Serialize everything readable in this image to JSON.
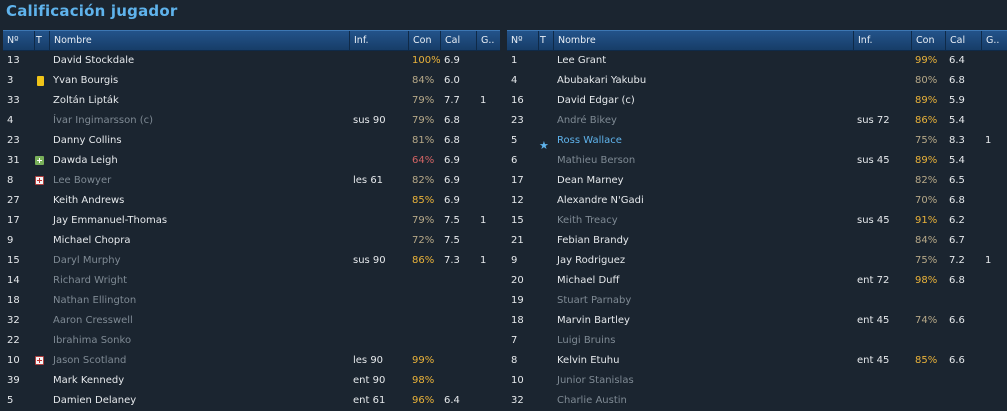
{
  "title": "Calificación jugador",
  "headers": {
    "num": "Nº",
    "t": "T",
    "name": "Nombre",
    "inf": "Inf.",
    "con": "Con",
    "cal": "Cal",
    "g": "G.."
  },
  "left": [
    {
      "num": "13",
      "icon": "",
      "name": "David Stockdale",
      "dim": false,
      "hl": false,
      "inf": "",
      "con": "100%",
      "con_level": "hi",
      "cal": "6.9",
      "g": ""
    },
    {
      "num": "3",
      "icon": "card-yellow-icon",
      "name": "Yvan Bourgis",
      "dim": false,
      "hl": false,
      "inf": "",
      "con": "84%",
      "con_level": "mid",
      "cal": "6.0",
      "g": ""
    },
    {
      "num": "33",
      "icon": "",
      "name": "Zoltán Lipták",
      "dim": false,
      "hl": false,
      "inf": "",
      "con": "79%",
      "con_level": "mid",
      "cal": "7.7",
      "g": "1"
    },
    {
      "num": "4",
      "icon": "",
      "name": "Ívar Ingimarsson (c)",
      "dim": true,
      "hl": false,
      "inf": "sus 90",
      "con": "79%",
      "con_level": "mid",
      "cal": "6.8",
      "g": ""
    },
    {
      "num": "23",
      "icon": "",
      "name": "Danny Collins",
      "dim": false,
      "hl": false,
      "inf": "",
      "con": "81%",
      "con_level": "mid",
      "cal": "6.8",
      "g": ""
    },
    {
      "num": "31",
      "icon": "sub-on-icon",
      "name": "Dawda Leigh",
      "dim": false,
      "hl": false,
      "inf": "",
      "con": "64%",
      "con_level": "low",
      "cal": "6.9",
      "g": ""
    },
    {
      "num": "8",
      "icon": "injury-icon",
      "name": "Lee Bowyer",
      "dim": true,
      "hl": false,
      "inf": "les 61",
      "con": "82%",
      "con_level": "mid",
      "cal": "6.9",
      "g": ""
    },
    {
      "num": "27",
      "icon": "",
      "name": "Keith Andrews",
      "dim": false,
      "hl": false,
      "inf": "",
      "con": "85%",
      "con_level": "hi",
      "cal": "6.9",
      "g": ""
    },
    {
      "num": "17",
      "icon": "",
      "name": "Jay Emmanuel-Thomas",
      "dim": false,
      "hl": false,
      "inf": "",
      "con": "79%",
      "con_level": "mid",
      "cal": "7.5",
      "g": "1"
    },
    {
      "num": "9",
      "icon": "",
      "name": "Michael Chopra",
      "dim": false,
      "hl": false,
      "inf": "",
      "con": "72%",
      "con_level": "mid",
      "cal": "7.5",
      "g": ""
    },
    {
      "num": "15",
      "icon": "",
      "name": "Daryl Murphy",
      "dim": true,
      "hl": false,
      "inf": "sus 90",
      "con": "86%",
      "con_level": "hi",
      "cal": "7.3",
      "g": "1"
    },
    {
      "num": "14",
      "icon": "",
      "name": "Richard Wright",
      "dim": true,
      "hl": false,
      "inf": "",
      "con": "",
      "con_level": "",
      "cal": "",
      "g": ""
    },
    {
      "num": "18",
      "icon": "",
      "name": "Nathan Ellington",
      "dim": true,
      "hl": false,
      "inf": "",
      "con": "",
      "con_level": "",
      "cal": "",
      "g": ""
    },
    {
      "num": "32",
      "icon": "",
      "name": "Aaron Cresswell",
      "dim": true,
      "hl": false,
      "inf": "",
      "con": "",
      "con_level": "",
      "cal": "",
      "g": ""
    },
    {
      "num": "22",
      "icon": "",
      "name": "Ibrahima Sonko",
      "dim": true,
      "hl": false,
      "inf": "",
      "con": "",
      "con_level": "",
      "cal": "",
      "g": ""
    },
    {
      "num": "10",
      "icon": "injury-icon",
      "name": "Jason Scotland",
      "dim": true,
      "hl": false,
      "inf": "les 90",
      "con": "99%",
      "con_level": "hi",
      "cal": "",
      "g": ""
    },
    {
      "num": "39",
      "icon": "",
      "name": "Mark Kennedy",
      "dim": false,
      "hl": false,
      "inf": "ent 90",
      "con": "98%",
      "con_level": "hi",
      "cal": "",
      "g": ""
    },
    {
      "num": "5",
      "icon": "",
      "name": "Damien Delaney",
      "dim": false,
      "hl": false,
      "inf": "ent 61",
      "con": "96%",
      "con_level": "hi",
      "cal": "6.4",
      "g": ""
    }
  ],
  "right": [
    {
      "num": "1",
      "icon": "",
      "name": "Lee Grant",
      "dim": false,
      "hl": false,
      "inf": "",
      "con": "99%",
      "con_level": "hi",
      "cal": "6.4",
      "g": ""
    },
    {
      "num": "4",
      "icon": "",
      "name": "Abubakari Yakubu",
      "dim": false,
      "hl": false,
      "inf": "",
      "con": "80%",
      "con_level": "mid",
      "cal": "6.8",
      "g": ""
    },
    {
      "num": "16",
      "icon": "",
      "name": "David Edgar (c)",
      "dim": false,
      "hl": false,
      "inf": "",
      "con": "89%",
      "con_level": "hi",
      "cal": "5.9",
      "g": ""
    },
    {
      "num": "23",
      "icon": "",
      "name": "André Bikey",
      "dim": true,
      "hl": false,
      "inf": "sus 72",
      "con": "86%",
      "con_level": "hi",
      "cal": "5.4",
      "g": ""
    },
    {
      "num": "5",
      "icon": "star-icon",
      "name": "Ross Wallace",
      "dim": false,
      "hl": true,
      "inf": "",
      "con": "75%",
      "con_level": "mid",
      "cal": "8.3",
      "g": "1"
    },
    {
      "num": "6",
      "icon": "",
      "name": "Mathieu Berson",
      "dim": true,
      "hl": false,
      "inf": "sus 45",
      "con": "89%",
      "con_level": "hi",
      "cal": "5.4",
      "g": ""
    },
    {
      "num": "17",
      "icon": "",
      "name": "Dean Marney",
      "dim": false,
      "hl": false,
      "inf": "",
      "con": "82%",
      "con_level": "mid",
      "cal": "6.5",
      "g": ""
    },
    {
      "num": "12",
      "icon": "",
      "name": "Alexandre N'Gadi",
      "dim": false,
      "hl": false,
      "inf": "",
      "con": "70%",
      "con_level": "mid",
      "cal": "6.8",
      "g": ""
    },
    {
      "num": "15",
      "icon": "",
      "name": "Keith Treacy",
      "dim": true,
      "hl": false,
      "inf": "sus 45",
      "con": "91%",
      "con_level": "hi",
      "cal": "6.2",
      "g": ""
    },
    {
      "num": "21",
      "icon": "",
      "name": "Febian Brandy",
      "dim": false,
      "hl": false,
      "inf": "",
      "con": "84%",
      "con_level": "mid",
      "cal": "6.7",
      "g": ""
    },
    {
      "num": "9",
      "icon": "",
      "name": "Jay Rodriguez",
      "dim": false,
      "hl": false,
      "inf": "",
      "con": "75%",
      "con_level": "mid",
      "cal": "7.2",
      "g": "1"
    },
    {
      "num": "20",
      "icon": "",
      "name": "Michael Duff",
      "dim": false,
      "hl": false,
      "inf": "ent 72",
      "con": "98%",
      "con_level": "hi",
      "cal": "6.8",
      "g": ""
    },
    {
      "num": "19",
      "icon": "",
      "name": "Stuart Parnaby",
      "dim": true,
      "hl": false,
      "inf": "",
      "con": "",
      "con_level": "",
      "cal": "",
      "g": ""
    },
    {
      "num": "18",
      "icon": "",
      "name": "Marvin Bartley",
      "dim": false,
      "hl": false,
      "inf": "ent 45",
      "con": "74%",
      "con_level": "mid",
      "cal": "6.6",
      "g": ""
    },
    {
      "num": "7",
      "icon": "",
      "name": "Luigi Bruins",
      "dim": true,
      "hl": false,
      "inf": "",
      "con": "",
      "con_level": "",
      "cal": "",
      "g": ""
    },
    {
      "num": "8",
      "icon": "",
      "name": "Kelvin Etuhu",
      "dim": false,
      "hl": false,
      "inf": "ent 45",
      "con": "85%",
      "con_level": "hi",
      "cal": "6.6",
      "g": ""
    },
    {
      "num": "10",
      "icon": "",
      "name": "Junior Stanislas",
      "dim": true,
      "hl": false,
      "inf": "",
      "con": "",
      "con_level": "",
      "cal": "",
      "g": ""
    },
    {
      "num": "32",
      "icon": "",
      "name": "Charlie Austin",
      "dim": true,
      "hl": false,
      "inf": "",
      "con": "",
      "con_level": "",
      "cal": "",
      "g": ""
    }
  ]
}
